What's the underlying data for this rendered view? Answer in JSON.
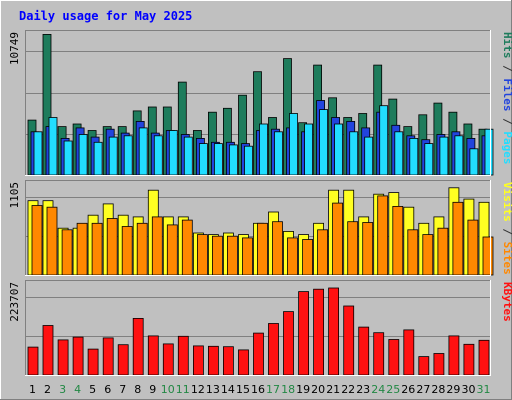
{
  "chart_data": {
    "type": "bar",
    "title": "Daily usage for May 2025",
    "days": [
      "1",
      "2",
      "3",
      "4",
      "5",
      "6",
      "7",
      "8",
      "9",
      "10",
      "11",
      "12",
      "13",
      "14",
      "15",
      "16",
      "17",
      "18",
      "19",
      "20",
      "21",
      "22",
      "23",
      "24",
      "25",
      "26",
      "27",
      "28",
      "29",
      "30",
      "31"
    ],
    "weekend_days": [
      "3",
      "4",
      "10",
      "11",
      "17",
      "18",
      "24",
      "25",
      "31"
    ],
    "colors": {
      "hits": "#1e7c5c",
      "files": "#2244dd",
      "pages": "#22ddff",
      "visits": "#ffff22",
      "sites": "#ff8800",
      "kbytes": "#ff1111",
      "weekday_label": "#000000",
      "weekend_label": "#228844",
      "title": "#0000ff"
    },
    "panels": [
      {
        "name": "hits-files-pages",
        "max_label": "10749",
        "max": 10749,
        "right_label": [
          {
            "text": "Pages",
            "color": "#22ddff"
          },
          {
            "text": " / ",
            "color": "#333333"
          },
          {
            "text": "Files",
            "color": "#2244dd"
          },
          {
            "text": " / ",
            "color": "#333333"
          },
          {
            "text": "Hits",
            "color": "#1e7c5c"
          }
        ],
        "series": [
          {
            "name": "Hits",
            "color": "#1e7c5c",
            "values": [
              4200,
              10749,
              3700,
              3900,
              3400,
              3700,
              3700,
              4900,
              5200,
              5200,
              7100,
              3400,
              4800,
              5100,
              6100,
              7900,
              4400,
              8900,
              4000,
              8400,
              5900,
              4400,
              4700,
              8400,
              5800,
              3700,
              4600,
              5500,
              4800,
              3900,
              3500
            ]
          },
          {
            "name": "Files",
            "color": "#2244dd",
            "values": [
              3300,
              3700,
              2800,
              3600,
              2900,
              3500,
              3200,
              4100,
              3200,
              3400,
              3100,
              2800,
              2500,
              2500,
              2400,
              3400,
              3500,
              3600,
              3300,
              5700,
              4400,
              4100,
              3600,
              4800,
              3800,
              3000,
              2700,
              3100,
              3300,
              2800,
              3000
            ]
          },
          {
            "name": "Pages",
            "color": "#22ddff",
            "values": [
              3300,
              4400,
              2600,
              3100,
              2500,
              2900,
              3000,
              3600,
              3000,
              3400,
              2900,
              2400,
              2400,
              2300,
              2200,
              3900,
              3300,
              4700,
              3900,
              5000,
              3900,
              3300,
              2900,
              5300,
              3300,
              2800,
              2400,
              2900,
              3000,
              2000,
              3500
            ]
          }
        ]
      },
      {
        "name": "visits-sites",
        "max_label": "1105",
        "max": 1105,
        "right_label": [
          {
            "text": "Sites",
            "color": "#ff8800"
          },
          {
            "text": " / ",
            "color": "#333333"
          },
          {
            "text": "Visits",
            "color": "#ffff22"
          }
        ],
        "series": [
          {
            "name": "Visits",
            "color": "#ffff22",
            "values": [
              920,
              920,
              580,
              580,
              740,
              880,
              740,
              720,
              1050,
              720,
              720,
              520,
              500,
              520,
              500,
              640,
              780,
              540,
              500,
              640,
              1050,
              1050,
              720,
              1000,
              1020,
              840,
              640,
              720,
              1080,
              940,
              900
            ]
          },
          {
            "name": "Sites",
            "color": "#ff8800",
            "values": [
              860,
              840,
              560,
              640,
              640,
              700,
              600,
              640,
              720,
              620,
              680,
              500,
              480,
              480,
              460,
              640,
              660,
              460,
              440,
              560,
              890,
              660,
              650,
              980,
              850,
              560,
              500,
              580,
              900,
              680,
              470
            ]
          }
        ]
      },
      {
        "name": "kbytes",
        "max_label": "223707",
        "max": 223707,
        "right_label": [
          {
            "text": "KBytes",
            "color": "#ff1111"
          }
        ],
        "series": [
          {
            "name": "KBytes",
            "color": "#ff1111",
            "values": [
              70000,
              124000,
              88000,
              95000,
              65000,
              93000,
              76000,
              142000,
              98000,
              78000,
              97000,
              73000,
              72000,
              71000,
              63000,
              105000,
              129000,
              159000,
              209000,
              215000,
              218000,
              173000,
              120000,
              106000,
              89000,
              113000,
              46000,
              54000,
              98000,
              77000,
              87000
            ]
          }
        ]
      }
    ]
  }
}
